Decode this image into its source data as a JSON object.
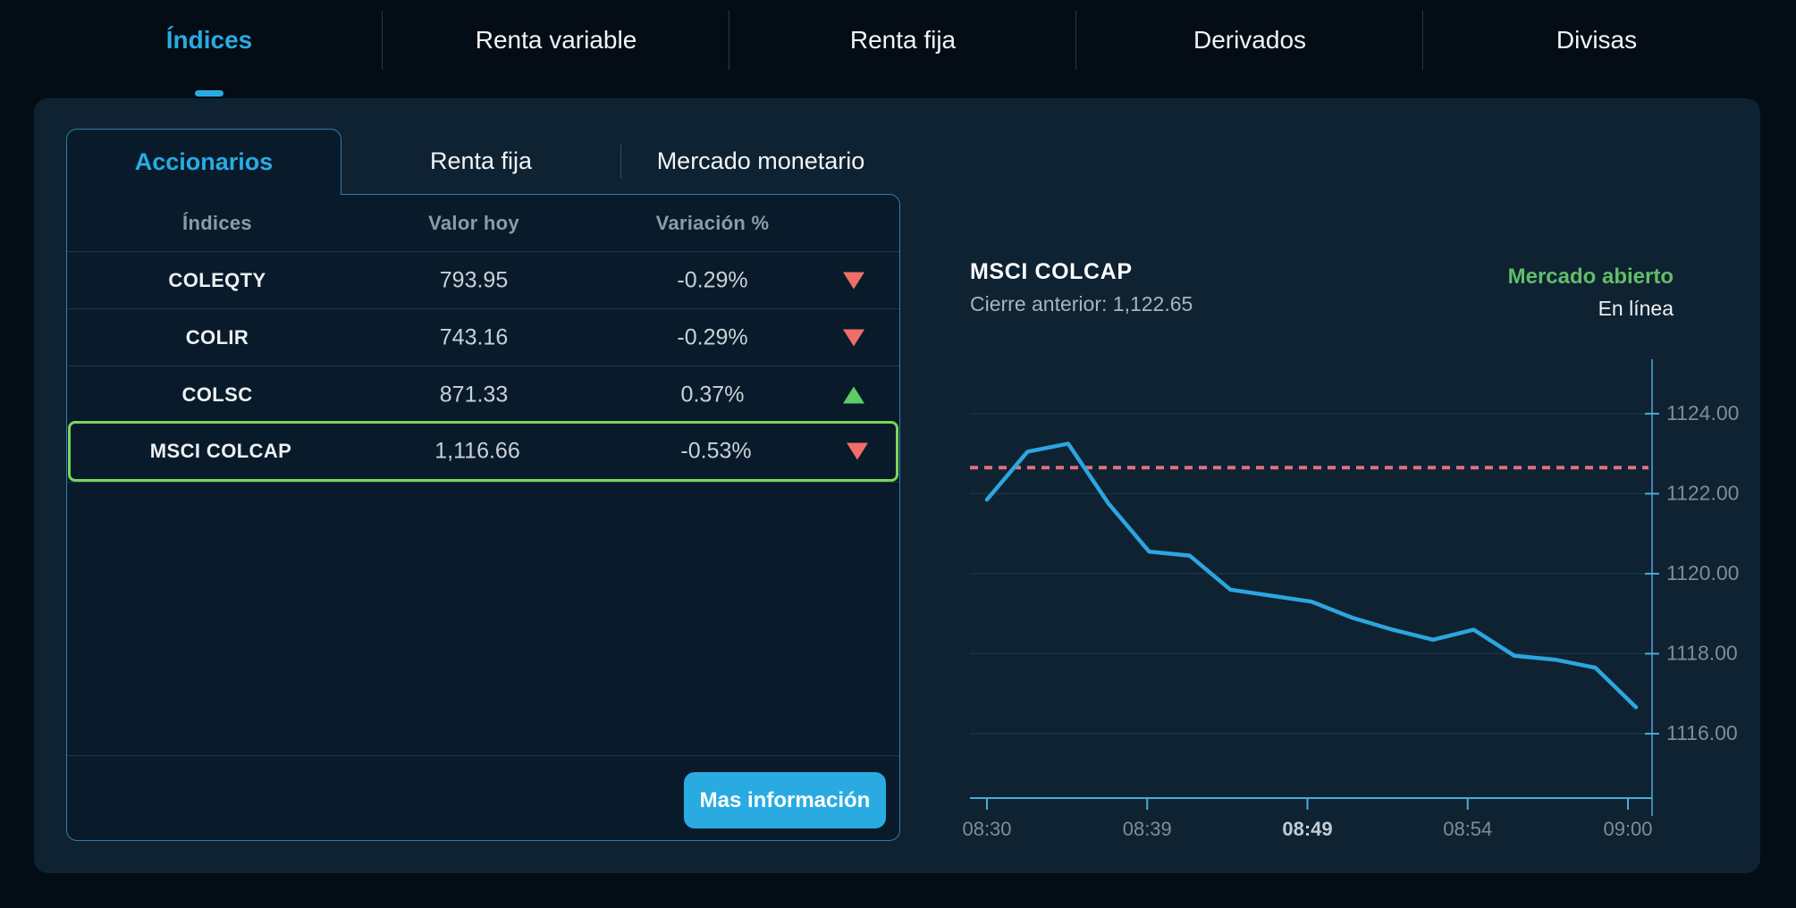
{
  "nav": {
    "items": [
      {
        "label": "Índices",
        "active": true
      },
      {
        "label": "Renta variable",
        "active": false
      },
      {
        "label": "Renta fija",
        "active": false
      },
      {
        "label": "Derivados",
        "active": false
      },
      {
        "label": "Divisas",
        "active": false
      }
    ]
  },
  "panel": {
    "tabs": [
      {
        "label": "Accionarios",
        "active": true
      },
      {
        "label": "Renta fija",
        "active": false
      },
      {
        "label": "Mercado monetario",
        "active": false
      }
    ],
    "table": {
      "columns": [
        "Índices",
        "Valor hoy",
        "Variación %"
      ],
      "rows": [
        {
          "name": "COLEQTY",
          "value": "793.95",
          "change": "-0.29%",
          "direction": "down",
          "selected": false
        },
        {
          "name": "COLIR",
          "value": "743.16",
          "change": "-0.29%",
          "direction": "down",
          "selected": false
        },
        {
          "name": "COLSC",
          "value": "871.33",
          "change": "0.37%",
          "direction": "up",
          "selected": false
        },
        {
          "name": "MSCI COLCAP",
          "value": "1,116.66",
          "change": "-0.53%",
          "direction": "down",
          "selected": true
        }
      ]
    },
    "button": {
      "label": "Mas información"
    }
  },
  "chart": {
    "title": "MSCI COLCAP",
    "subtitle": "Cierre anterior: 1,122.65",
    "status": "Mercado abierto",
    "status_sub": "En línea"
  },
  "chart_data": {
    "type": "line",
    "title": "MSCI COLCAP",
    "x_ticks": [
      "08:30",
      "08:39",
      "08:49",
      "08:54",
      "09:00"
    ],
    "bold_x_tick": "08:49",
    "x_range": [
      "08:30",
      "09:00"
    ],
    "y_ticks": [
      1124,
      1122,
      1120,
      1118,
      1116
    ],
    "y_tick_labels": [
      "1124.00",
      "1122.00",
      "1120.00",
      "1118.00",
      "1116.00"
    ],
    "ylim": [
      1114.39,
      1125.36
    ],
    "previous_close": 1122.65,
    "grid": "horizontal",
    "legend": "none",
    "series": [
      {
        "name": "MSCI COLCAP",
        "values": [
          1121.85,
          1123.05,
          1123.25,
          1121.75,
          1120.55,
          1120.45,
          1119.6,
          1119.45,
          1119.3,
          1118.9,
          1118.6,
          1118.35,
          1118.6,
          1117.95,
          1117.85,
          1117.65,
          1116.66
        ]
      }
    ],
    "colors": {
      "line": "#2CA6DE",
      "axis": "#4FA8D8",
      "grid": "#1D3343",
      "tick_label": "#7E8C98",
      "bold_tick_label": "#C2CCD4",
      "previous_close_line": "#E0707E"
    }
  },
  "colors": {
    "accent": "#29ABE2",
    "positive": "#5ECB66",
    "negative": "#EF6F68",
    "selected_border": "#7BD45B",
    "market_open": "#62BD69",
    "panel_bg": "#0E2232",
    "card_bg": "#091B2A",
    "background": "#040D16"
  }
}
